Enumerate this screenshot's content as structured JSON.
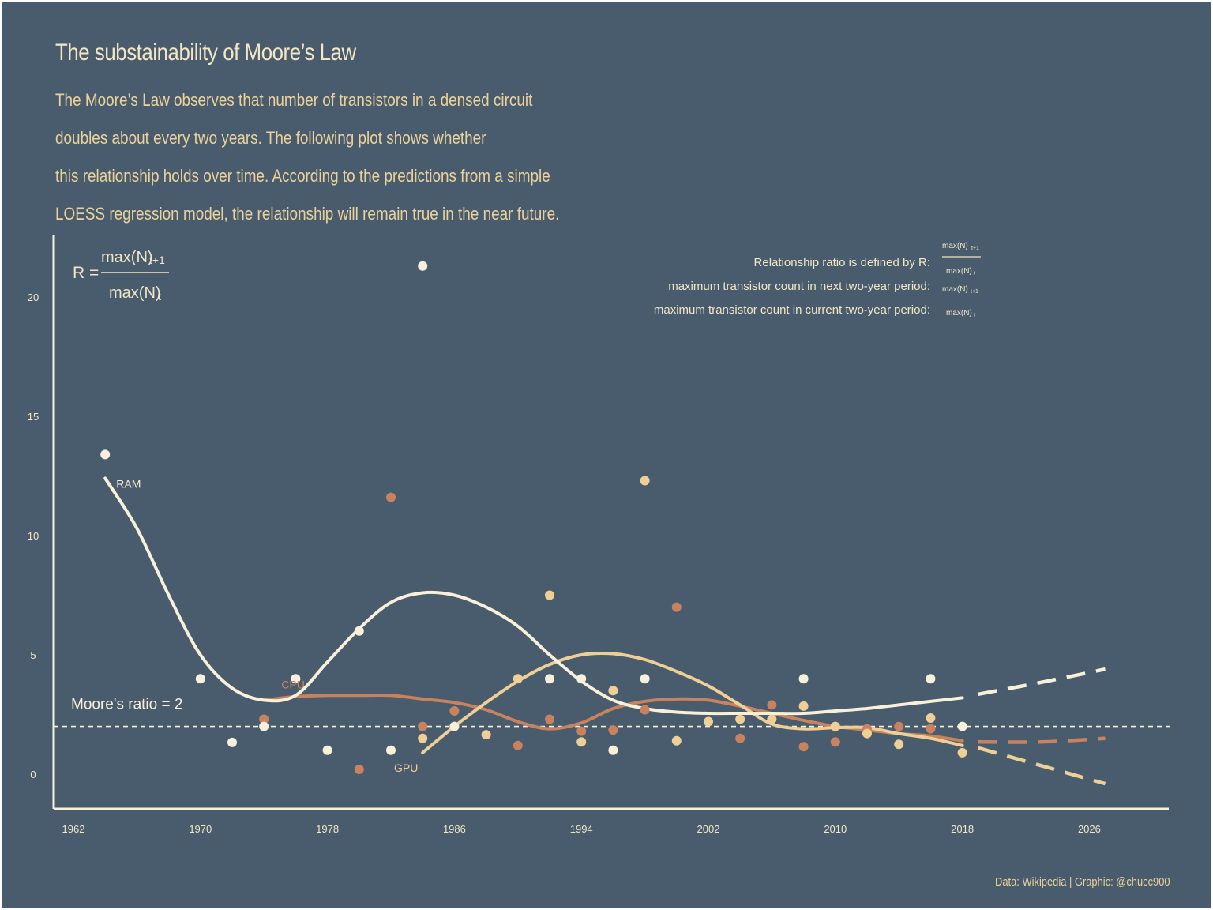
{
  "title": "The substainability  of Moore’s Law",
  "subtitle_lines": [
    "The Moore’s Law observes that number of transistors in a densed circuit",
    "doubles about every two years. The following plot shows whether",
    "this relationship holds over time. According to the predictions from a simple",
    "LOESS regression model, the relationship will remain true in the near future."
  ],
  "caption": "Data: Wikipedia |  Graphic: @chucc900",
  "formula": {
    "lhs": "R =",
    "numerator": "max(N)",
    "numerator_sub": "t+1",
    "denominator": "max(N)",
    "denominator_sub": "t"
  },
  "definitions": [
    {
      "label": "Relationship ratio is defined by R:",
      "math": "fraction"
    },
    {
      "label": "maximum transistor count in next two-year period:",
      "math": "max(N)",
      "sub": "t+1"
    },
    {
      "label": "maximum transistor count in current two-year period:",
      "math": "max(N)",
      "sub": "t"
    }
  ],
  "reference_line": {
    "label": "Moore's ratio = 2",
    "value": 2
  },
  "colors": {
    "background": "#495c6e",
    "RAM": "#f8f0d8",
    "CPU": "#c9825e",
    "GPU": "#eecf96",
    "text": "#ebd19a",
    "title": "#f2e6c4"
  },
  "chart_data": {
    "type": "scatter",
    "title": "",
    "xlabel": "",
    "ylabel": "",
    "xlim": [
      1961,
      2032
    ],
    "ylim": [
      -1.4,
      22.5
    ],
    "x_ticks": [
      "1962",
      "1970",
      "1978",
      "1986",
      "1994",
      "2002",
      "2010",
      "2018",
      "2026"
    ],
    "y_ticks": [
      "0",
      "5",
      "10",
      "15",
      "20"
    ],
    "series": [
      {
        "name": "RAM",
        "points": [
          [
            1964,
            13.4
          ],
          [
            1970,
            4
          ],
          [
            1972,
            1.33
          ],
          [
            1974,
            2
          ],
          [
            1976,
            4
          ],
          [
            1978,
            1
          ],
          [
            1980,
            6
          ],
          [
            1982,
            1
          ],
          [
            1984,
            21.3
          ],
          [
            1986,
            2
          ],
          [
            1992,
            4
          ],
          [
            1994,
            4
          ],
          [
            1996,
            1
          ],
          [
            1998,
            4
          ],
          [
            2008,
            4
          ],
          [
            2016,
            4
          ],
          [
            2018,
            2
          ]
        ],
        "trend": [
          [
            1964,
            12.4
          ],
          [
            1966,
            10.3
          ],
          [
            1968,
            7.5
          ],
          [
            1970,
            5.0
          ],
          [
            1972,
            3.6
          ],
          [
            1974,
            3.1
          ],
          [
            1976,
            3.3
          ],
          [
            1978,
            4.7
          ],
          [
            1980,
            6.1
          ],
          [
            1982,
            7.2
          ],
          [
            1984,
            7.6
          ],
          [
            1986,
            7.5
          ],
          [
            1988,
            7.0
          ],
          [
            1990,
            6.2
          ],
          [
            1992,
            5.0
          ],
          [
            1994,
            3.9
          ],
          [
            1996,
            3.1
          ],
          [
            1998,
            2.75
          ],
          [
            2000,
            2.6
          ],
          [
            2002,
            2.55
          ],
          [
            2004,
            2.55
          ],
          [
            2006,
            2.55
          ],
          [
            2008,
            2.55
          ],
          [
            2010,
            2.65
          ],
          [
            2012,
            2.75
          ],
          [
            2014,
            2.9
          ],
          [
            2016,
            3.05
          ],
          [
            2018,
            3.2
          ]
        ],
        "forecast": [
          [
            2019,
            3.35
          ],
          [
            2023,
            3.85
          ],
          [
            2027,
            4.4
          ]
        ]
      },
      {
        "name": "CPU",
        "points": [
          [
            1974,
            2.3
          ],
          [
            1980,
            0.2
          ],
          [
            1982,
            11.6
          ],
          [
            1984,
            2.0
          ],
          [
            1986,
            2.65
          ],
          [
            1990,
            1.2
          ],
          [
            1992,
            2.3
          ],
          [
            1994,
            1.8
          ],
          [
            1996,
            1.85
          ],
          [
            1998,
            2.7
          ],
          [
            2000,
            7.0
          ],
          [
            2004,
            1.5
          ],
          [
            2006,
            2.9
          ],
          [
            2008,
            1.15
          ],
          [
            2010,
            1.35
          ],
          [
            2012,
            1.9
          ],
          [
            2014,
            2.0
          ],
          [
            2016,
            1.9
          ]
        ],
        "trend": [
          [
            1974,
            3.1
          ],
          [
            1976,
            3.25
          ],
          [
            1978,
            3.3
          ],
          [
            1980,
            3.3
          ],
          [
            1982,
            3.3
          ],
          [
            1984,
            3.15
          ],
          [
            1986,
            3.0
          ],
          [
            1988,
            2.7
          ],
          [
            1990,
            2.2
          ],
          [
            1992,
            1.9
          ],
          [
            1994,
            2.15
          ],
          [
            1996,
            2.75
          ],
          [
            1998,
            3.05
          ],
          [
            2000,
            3.15
          ],
          [
            2002,
            3.1
          ],
          [
            2004,
            2.85
          ],
          [
            2006,
            2.55
          ],
          [
            2008,
            2.25
          ],
          [
            2010,
            2.0
          ],
          [
            2012,
            1.85
          ],
          [
            2014,
            1.7
          ],
          [
            2016,
            1.6
          ],
          [
            2018,
            1.4
          ]
        ],
        "forecast": [
          [
            2019,
            1.35
          ],
          [
            2023,
            1.35
          ],
          [
            2027,
            1.5
          ]
        ]
      },
      {
        "name": "GPU",
        "points": [
          [
            1984,
            1.5
          ],
          [
            1988,
            1.65
          ],
          [
            1990,
            4.0
          ],
          [
            1992,
            7.5
          ],
          [
            1994,
            1.35
          ],
          [
            1996,
            3.5
          ],
          [
            1998,
            12.3
          ],
          [
            2000,
            1.4
          ],
          [
            2002,
            2.2
          ],
          [
            2004,
            2.3
          ],
          [
            2006,
            2.3
          ],
          [
            2008,
            2.85
          ],
          [
            2010,
            2.0
          ],
          [
            2012,
            1.7
          ],
          [
            2014,
            1.25
          ],
          [
            2016,
            2.35
          ],
          [
            2018,
            0.9
          ]
        ],
        "trend": [
          [
            1984,
            0.9
          ],
          [
            1986,
            2.0
          ],
          [
            1988,
            3.0
          ],
          [
            1990,
            3.9
          ],
          [
            1992,
            4.6
          ],
          [
            1994,
            5.0
          ],
          [
            1996,
            5.05
          ],
          [
            1998,
            4.8
          ],
          [
            2000,
            4.3
          ],
          [
            2002,
            3.7
          ],
          [
            2004,
            2.9
          ],
          [
            2006,
            2.1
          ],
          [
            2008,
            1.9
          ],
          [
            2010,
            1.95
          ],
          [
            2012,
            1.95
          ],
          [
            2014,
            1.7
          ],
          [
            2016,
            1.5
          ],
          [
            2018,
            1.2
          ]
        ],
        "forecast": [
          [
            2019,
            1.1
          ],
          [
            2023,
            0.35
          ],
          [
            2027,
            -0.4
          ]
        ]
      }
    ],
    "series_labels": [
      {
        "series": "RAM",
        "text": "RAM",
        "x": 1964.7,
        "y": 12.0
      },
      {
        "series": "CPU",
        "text": "CPU",
        "x": 1975.1,
        "y": 3.6
      },
      {
        "series": "GPU",
        "text": "GPU",
        "x": 1982.2,
        "y": 0.1
      }
    ],
    "grid": false
  }
}
